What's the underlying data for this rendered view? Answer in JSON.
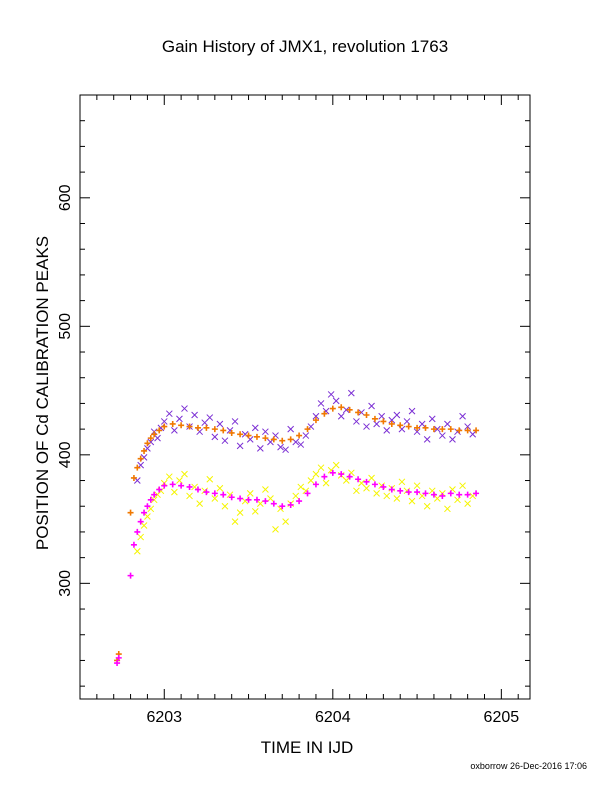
{
  "chart_data": {
    "type": "scatter",
    "title": "Gain History of JMX1, revolution 1763",
    "xlabel": "TIME IN IJD",
    "ylabel": "POSITION OF Cd CALIBRATION PEAKS",
    "xlim": [
      6202.5,
      6205.17
    ],
    "ylim": [
      210,
      680
    ],
    "xticks": [
      6203,
      6204,
      6205
    ],
    "xtick_labels": [
      "6203",
      "6204",
      "6205"
    ],
    "yticks": [
      300,
      400,
      500,
      600
    ],
    "ytick_labels": [
      "300",
      "400",
      "500",
      "600"
    ],
    "grid": false,
    "series": [
      {
        "marker": "x",
        "color": "#7b2fd4",
        "x": [
          6202.84,
          6202.86,
          6202.88,
          6202.9,
          6202.92,
          6202.94,
          6202.96,
          6202.98,
          6203.0,
          6203.03,
          6203.06,
          6203.09,
          6203.12,
          6203.15,
          6203.18,
          6203.21,
          6203.24,
          6203.27,
          6203.3,
          6203.33,
          6203.36,
          6203.39,
          6203.42,
          6203.45,
          6203.48,
          6203.51,
          6203.54,
          6203.57,
          6203.6,
          6203.63,
          6203.66,
          6203.69,
          6203.72,
          6203.75,
          6203.78,
          6203.81,
          6203.84,
          6203.87,
          6203.9,
          6203.93,
          6203.96,
          6203.99,
          6204.02,
          6204.05,
          6204.08,
          6204.11,
          6204.14,
          6204.17,
          6204.2,
          6204.23,
          6204.26,
          6204.29,
          6204.32,
          6204.35,
          6204.38,
          6204.41,
          6204.44,
          6204.47,
          6204.5,
          6204.53,
          6204.56,
          6204.59,
          6204.62,
          6204.65,
          6204.68,
          6204.71,
          6204.74,
          6204.77,
          6204.8,
          6204.83
        ],
        "y": [
          380,
          392,
          398,
          405,
          410,
          418,
          413,
          421,
          426,
          432,
          419,
          428,
          436,
          422,
          431,
          418,
          425,
          429,
          414,
          424,
          411,
          419,
          426,
          407,
          416,
          412,
          421,
          405,
          418,
          410,
          415,
          406,
          404,
          420,
          410,
          408,
          415,
          422,
          430,
          440,
          434,
          447,
          442,
          430,
          435,
          448,
          426,
          433,
          422,
          438,
          424,
          430,
          419,
          427,
          431,
          420,
          426,
          434,
          418,
          424,
          412,
          428,
          420,
          415,
          424,
          412,
          418,
          430,
          422,
          416
        ]
      },
      {
        "marker": "+",
        "color": "#f07800",
        "x": [
          6202.72,
          6202.73,
          6202.8,
          6202.82,
          6202.84,
          6202.86,
          6202.88,
          6202.9,
          6202.92,
          6202.94,
          6202.97,
          6203.0,
          6203.05,
          6203.1,
          6203.15,
          6203.2,
          6203.25,
          6203.3,
          6203.35,
          6203.4,
          6203.45,
          6203.5,
          6203.55,
          6203.6,
          6203.65,
          6203.7,
          6203.75,
          6203.8,
          6203.85,
          6203.9,
          6203.95,
          6204.0,
          6204.05,
          6204.1,
          6204.15,
          6204.2,
          6204.25,
          6204.3,
          6204.35,
          6204.4,
          6204.45,
          6204.5,
          6204.55,
          6204.6,
          6204.65,
          6204.7,
          6204.75,
          6204.8,
          6204.85
        ],
        "y": [
          240,
          245,
          355,
          382,
          390,
          397,
          403,
          409,
          413,
          416,
          419,
          422,
          424,
          423,
          422,
          421,
          421,
          420,
          419,
          417,
          416,
          415,
          414,
          413,
          412,
          411,
          412,
          415,
          420,
          427,
          432,
          436,
          437,
          435,
          433,
          431,
          428,
          426,
          424,
          423,
          422,
          421,
          421,
          420,
          420,
          420,
          419,
          419,
          419
        ]
      },
      {
        "marker": "x",
        "color": "#f5f500",
        "x": [
          6202.84,
          6202.86,
          6202.88,
          6202.9,
          6202.92,
          6202.94,
          6202.96,
          6202.98,
          6203.0,
          6203.03,
          6203.06,
          6203.09,
          6203.12,
          6203.15,
          6203.18,
          6203.21,
          6203.24,
          6203.27,
          6203.3,
          6203.33,
          6203.36,
          6203.39,
          6203.42,
          6203.45,
          6203.48,
          6203.51,
          6203.54,
          6203.57,
          6203.6,
          6203.63,
          6203.66,
          6203.69,
          6203.72,
          6203.75,
          6203.78,
          6203.81,
          6203.84,
          6203.87,
          6203.9,
          6203.93,
          6203.96,
          6203.99,
          6204.02,
          6204.05,
          6204.08,
          6204.11,
          6204.14,
          6204.17,
          6204.2,
          6204.23,
          6204.26,
          6204.29,
          6204.32,
          6204.35,
          6204.38,
          6204.41,
          6204.44,
          6204.47,
          6204.5,
          6204.53,
          6204.56,
          6204.59,
          6204.62,
          6204.65,
          6204.68,
          6204.71,
          6204.74,
          6204.77,
          6204.8,
          6204.83
        ],
        "y": [
          325,
          336,
          345,
          352,
          358,
          365,
          369,
          372,
          378,
          383,
          371,
          380,
          385,
          368,
          375,
          362,
          372,
          381,
          366,
          374,
          360,
          369,
          348,
          355,
          364,
          370,
          356,
          362,
          373,
          366,
          342,
          358,
          348,
          362,
          368,
          375,
          372,
          380,
          385,
          390,
          378,
          388,
          392,
          384,
          380,
          386,
          372,
          378,
          374,
          382,
          370,
          376,
          368,
          374,
          366,
          379,
          372,
          364,
          376,
          368,
          360,
          372,
          366,
          370,
          358,
          373,
          365,
          376,
          362,
          368
        ]
      },
      {
        "marker": "+",
        "color": "#ff00ff",
        "x": [
          6202.72,
          6202.73,
          6202.8,
          6202.82,
          6202.84,
          6202.86,
          6202.88,
          6202.9,
          6202.92,
          6202.94,
          6202.97,
          6203.0,
          6203.05,
          6203.1,
          6203.15,
          6203.2,
          6203.25,
          6203.3,
          6203.35,
          6203.4,
          6203.45,
          6203.5,
          6203.55,
          6203.6,
          6203.65,
          6203.7,
          6203.75,
          6203.8,
          6203.85,
          6203.9,
          6203.95,
          6204.0,
          6204.05,
          6204.1,
          6204.15,
          6204.2,
          6204.25,
          6204.3,
          6204.35,
          6204.4,
          6204.45,
          6204.5,
          6204.55,
          6204.6,
          6204.65,
          6204.7,
          6204.75,
          6204.8,
          6204.85
        ],
        "y": [
          238,
          242,
          306,
          330,
          340,
          348,
          355,
          360,
          365,
          369,
          373,
          376,
          377,
          376,
          375,
          373,
          371,
          370,
          369,
          367,
          366,
          365,
          365,
          364,
          362,
          360,
          361,
          364,
          370,
          377,
          383,
          386,
          385,
          383,
          381,
          379,
          377,
          375,
          373,
          372,
          371,
          371,
          370,
          369,
          368,
          370,
          369,
          369,
          370
        ]
      }
    ]
  },
  "footer": {
    "stamp": "oxborrow 26-Dec-2016 17:06"
  }
}
